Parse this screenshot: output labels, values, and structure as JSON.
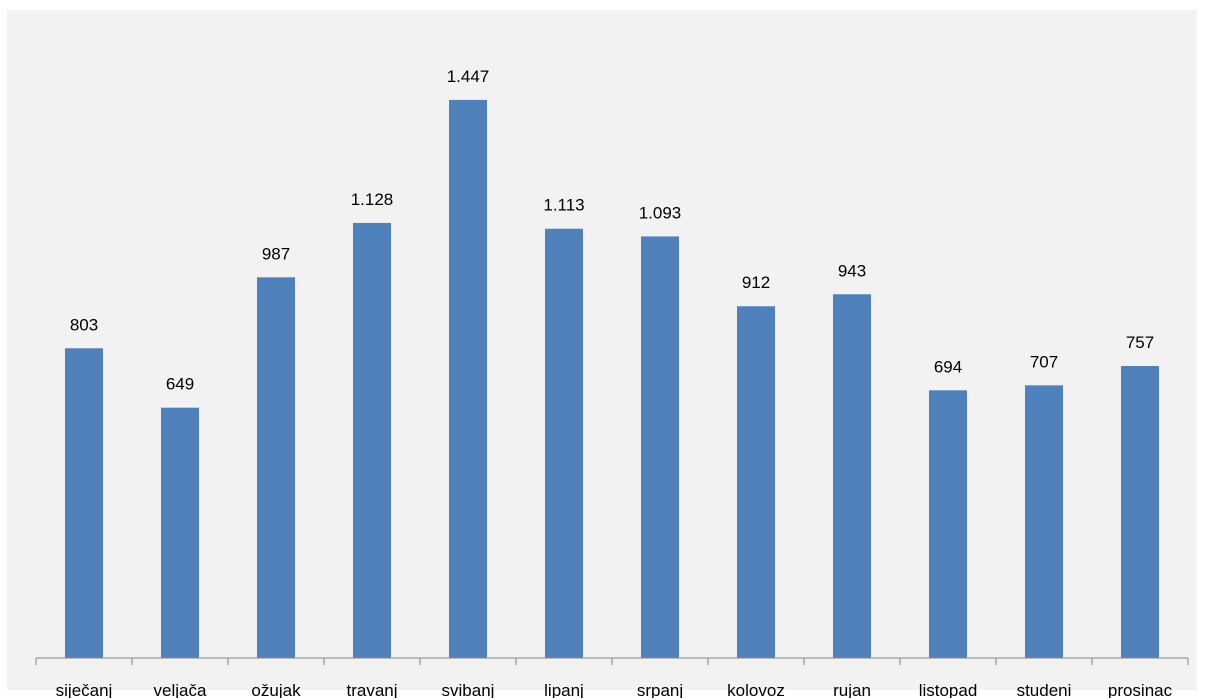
{
  "chart_data": {
    "type": "bar",
    "categories": [
      "siječanj",
      "veljača",
      "ožujak",
      "travanj",
      "svibanj",
      "lipanj",
      "srpanj",
      "kolovoz",
      "rujan",
      "listopad",
      "studeni",
      "prosinac"
    ],
    "values": [
      803,
      649,
      987,
      1128,
      1447,
      1113,
      1093,
      912,
      943,
      694,
      707,
      757
    ],
    "data_labels": [
      "803",
      "649",
      "987",
      "1.128",
      "1.447",
      "1.113",
      "1.093",
      "912",
      "943",
      "694",
      "707",
      "757"
    ],
    "title": "",
    "xlabel": "",
    "ylabel": "",
    "ylim": [
      0,
      1600
    ],
    "grid": false,
    "legend": "none",
    "colors": {
      "bar": "#4f81bd",
      "axis": "#868686",
      "background": "#f2f2f2"
    }
  }
}
